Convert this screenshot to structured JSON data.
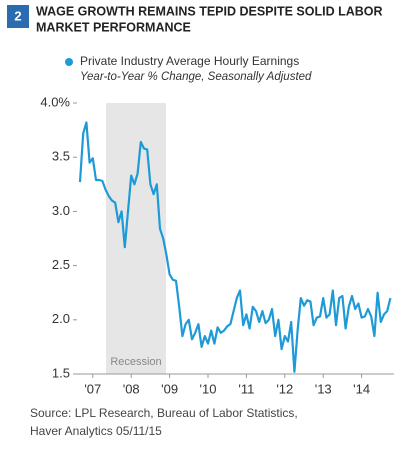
{
  "figure_number": "2",
  "chart_data": {
    "type": "line",
    "title": [
      "WAGE GROWTH REMAINS TEPID DESPITE SOLID LABOR",
      "MARKET PERFORMANCE"
    ],
    "subtitle": "Year-to-Year % Change, Seasonally Adjusted",
    "annotation": "Recession",
    "source": [
      "Source: LPL Research, Bureau of Labor Statistics,",
      "Haver Analytics   05/11/15"
    ],
    "categories": [
      null,
      null,
      null,
      null,
      "'07",
      null,
      null,
      null,
      null,
      null,
      null,
      null,
      null,
      null,
      null,
      null,
      "'08",
      null,
      null,
      null,
      null,
      null,
      null,
      null,
      null,
      null,
      null,
      null,
      "'09",
      null,
      null,
      null,
      null,
      null,
      null,
      null,
      null,
      null,
      null,
      null,
      "'10",
      null,
      null,
      null,
      null,
      null,
      null,
      null,
      null,
      null,
      null,
      null,
      "'11",
      null,
      null,
      null,
      null,
      null,
      null,
      null,
      null,
      null,
      null,
      null,
      "'12",
      null,
      null,
      null,
      null,
      null,
      null,
      null,
      null,
      null,
      null,
      null,
      "'13",
      null,
      null,
      null,
      null,
      null,
      null,
      null,
      null,
      null,
      null,
      null,
      "'14",
      null,
      null,
      null,
      null,
      null,
      null,
      null,
      null,
      null
    ],
    "series": [
      {
        "name": "Private Industry Average Hourly Earnings",
        "color": "#1e9ad6",
        "values": [
          3.27,
          3.72,
          3.82,
          3.45,
          3.49,
          3.29,
          3.29,
          3.28,
          3.2,
          3.14,
          3.1,
          3.08,
          2.9,
          3.0,
          2.67,
          3.0,
          3.33,
          3.25,
          3.35,
          3.64,
          3.58,
          3.57,
          3.25,
          3.16,
          3.25,
          2.84,
          2.75,
          2.6,
          2.42,
          2.37,
          2.36,
          2.12,
          1.85,
          1.96,
          2.0,
          1.82,
          1.88,
          1.96,
          1.75,
          1.85,
          1.78,
          1.9,
          1.78,
          1.93,
          1.88,
          1.9,
          1.94,
          1.96,
          2.08,
          2.2,
          2.27,
          1.95,
          2.05,
          1.92,
          2.12,
          2.08,
          1.98,
          2.08,
          1.97,
          2.0,
          2.1,
          1.85,
          2.0,
          1.73,
          1.85,
          1.8,
          1.98,
          1.52,
          1.9,
          2.2,
          2.13,
          2.18,
          2.17,
          1.95,
          2.02,
          2.03,
          2.2,
          2.02,
          2.05,
          2.27,
          1.95,
          2.2,
          2.22,
          1.92,
          2.12,
          2.22,
          2.1,
          2.15,
          2.02,
          2.03,
          2.1,
          2.03,
          1.85,
          2.25,
          1.98,
          2.05,
          2.08,
          2.2
        ]
      }
    ],
    "ylim": [
      1.5,
      4.0
    ],
    "yticks": [
      {
        "value": 4,
        "label": "4.0%"
      },
      3.5,
      {
        "value": 3,
        "label": "3.0"
      },
      2.5,
      {
        "value": 2,
        "label": "2.0"
      },
      1.5
    ]
  }
}
